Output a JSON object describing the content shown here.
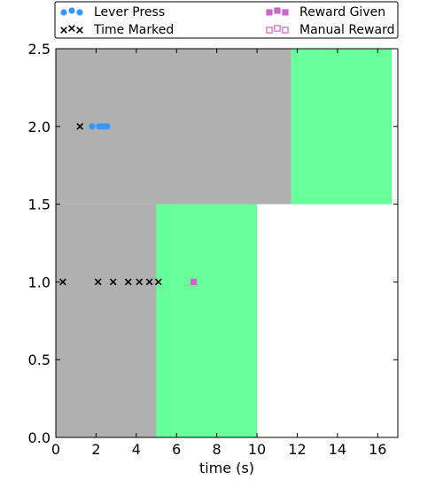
{
  "chart_data": {
    "type": "scatter",
    "xlabel": "time (s)",
    "ylabel": "",
    "xlim": [
      0,
      17
    ],
    "ylim": [
      0,
      2.5
    ],
    "xticks": [
      0,
      2,
      4,
      6,
      8,
      10,
      12,
      14,
      16
    ],
    "yticks": [
      0.0,
      0.5,
      1.0,
      1.5,
      2.0,
      2.5
    ],
    "xtick_labels": [
      "0",
      "2",
      "4",
      "6",
      "8",
      "10",
      "12",
      "14",
      "16"
    ],
    "ytick_labels": [
      "0.0",
      "0.5",
      "1.0",
      "1.5",
      "2.0",
      "2.5"
    ],
    "grid": false,
    "legend_placement": "top",
    "regions": [
      {
        "x0": 0,
        "x1": 5.0,
        "y0": 0,
        "y1": 1.5,
        "color": "#b0b0b0"
      },
      {
        "x0": 5.0,
        "x1": 10.0,
        "y0": 0,
        "y1": 1.5,
        "color": "#66ff99"
      },
      {
        "x0": 0,
        "x1": 11.7,
        "y0": 1.5,
        "y1": 2.5,
        "color": "#b0b0b0"
      },
      {
        "x0": 11.7,
        "x1": 16.7,
        "y0": 1.5,
        "y1": 2.5,
        "color": "#66ff99"
      }
    ],
    "series": [
      {
        "name": "Lever Press",
        "marker": "circle",
        "color": "#3399ff",
        "points": [
          [
            1.8,
            2.0
          ],
          [
            2.15,
            2.0
          ],
          [
            2.3,
            2.0
          ],
          [
            2.45,
            2.0
          ],
          [
            2.55,
            2.0
          ]
        ]
      },
      {
        "name": "Time Marked",
        "marker": "x",
        "color": "#000000",
        "points": [
          [
            1.2,
            2.0
          ],
          [
            0.35,
            1.0
          ],
          [
            2.1,
            1.0
          ],
          [
            2.85,
            1.0
          ],
          [
            3.6,
            1.0
          ],
          [
            4.15,
            1.0
          ],
          [
            4.65,
            1.0
          ],
          [
            5.1,
            1.0
          ]
        ]
      },
      {
        "name": "Reward Given",
        "marker": "square-filled",
        "color": "#cc66cc",
        "points": [
          [
            6.85,
            1.0
          ]
        ]
      },
      {
        "name": "Manual Reward",
        "marker": "square-open",
        "color": "#cc66cc",
        "points": []
      }
    ]
  }
}
